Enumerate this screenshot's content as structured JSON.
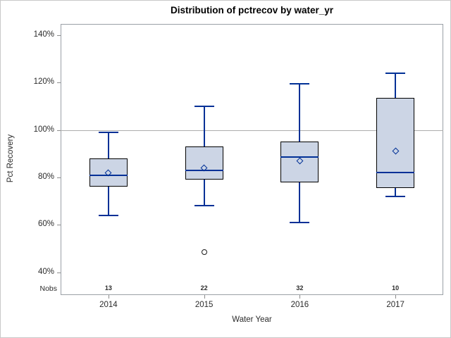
{
  "chart_data": {
    "type": "box",
    "title": "Distribution of pctrecov by water_yr",
    "xlabel": "Water Year",
    "ylabel": "Pct Recovery",
    "nobs_label": "Nobs",
    "categories": [
      "2014",
      "2015",
      "2016",
      "2017"
    ],
    "nobs": [
      13,
      22,
      32,
      10
    ],
    "y_axis": {
      "min": 40,
      "max": 140,
      "tick_step": 20,
      "ticks": [
        {
          "value": 140,
          "label": "140%"
        },
        {
          "value": 120,
          "label": "120%"
        },
        {
          "value": 100,
          "label": "100%"
        },
        {
          "value": 80,
          "label": "80%"
        },
        {
          "value": 60,
          "label": "60%"
        },
        {
          "value": 40,
          "label": "40%"
        }
      ]
    },
    "reference_line": 100,
    "legend": "none",
    "grid": "off",
    "series": [
      {
        "category": "2014",
        "n": 13,
        "whisker_low": 64,
        "q1": 76,
        "median": 81,
        "mean": 82,
        "q3": 88,
        "whisker_high": 99,
        "outliers": []
      },
      {
        "category": "2015",
        "n": 22,
        "whisker_low": 68,
        "q1": 79,
        "median": 83,
        "mean": 84,
        "q3": 93,
        "whisker_high": 110,
        "outliers": [
          48.5
        ]
      },
      {
        "category": "2016",
        "n": 32,
        "whisker_low": 61,
        "q1": 78,
        "median": 88.5,
        "mean": 87,
        "q3": 95,
        "whisker_high": 119.5,
        "outliers": []
      },
      {
        "category": "2017",
        "n": 10,
        "whisker_low": 72,
        "q1": 75.5,
        "median": 82,
        "mean": 91,
        "q3": 113.5,
        "whisker_high": 124,
        "outliers": []
      }
    ],
    "colors": {
      "box_fill": "#ccd5e5",
      "box_border": "#000000",
      "line": "#003096",
      "reference_line": "#adadad",
      "axis_border": "#9aa0a6",
      "tick": "#8c8c8c",
      "text": "#2b2b2b",
      "outlier": "#1a1a1a"
    }
  }
}
